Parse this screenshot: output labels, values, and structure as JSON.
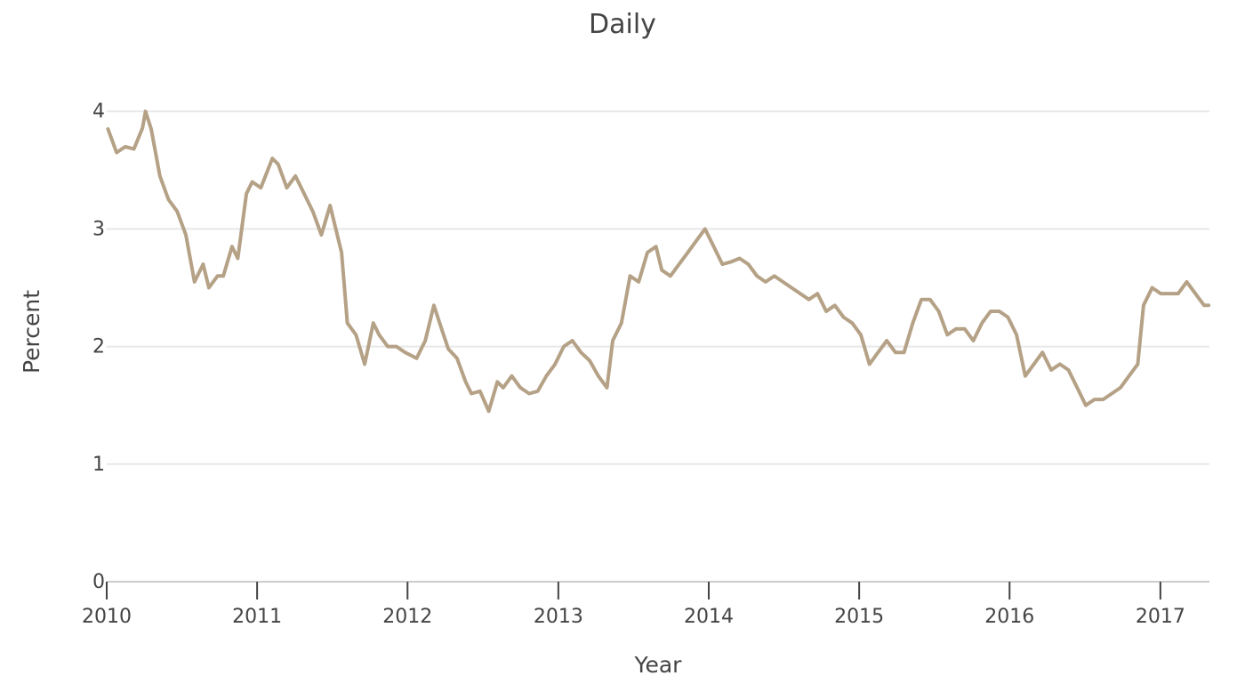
{
  "chart_data": {
    "type": "line",
    "title_lines": [
      "Daily"
    ],
    "xlabel": "Year",
    "ylabel": "Percent",
    "x_tick_labels": [
      "2010",
      "2011",
      "2012",
      "2013",
      "2014",
      "2015",
      "2016",
      "2017"
    ],
    "y_tick_labels": [
      "0",
      "1",
      "2",
      "3",
      "4"
    ],
    "xlim": [
      "2010-01-01",
      "2017-04-30"
    ],
    "ylim": [
      0,
      4.1
    ],
    "grid": true,
    "colors": {
      "series": "#b5a186",
      "text": "#444444",
      "grid": "#e8e8e8",
      "axis": "#cccccc"
    },
    "series": [
      {
        "x": [
          "2010-01-04",
          "2010-01-25",
          "2010-02-15",
          "2010-03-08",
          "2010-03-29",
          "2010-04-05",
          "2010-04-19",
          "2010-05-10",
          "2010-05-31",
          "2010-06-21",
          "2010-07-12",
          "2010-08-02",
          "2010-08-23",
          "2010-09-06",
          "2010-09-27",
          "2010-10-11",
          "2010-11-01",
          "2010-11-15",
          "2010-12-06",
          "2010-12-20",
          "2011-01-10",
          "2011-02-07",
          "2011-02-21",
          "2011-03-14",
          "2011-04-04",
          "2011-04-25",
          "2011-05-16",
          "2011-06-06",
          "2011-06-27",
          "2011-07-11",
          "2011-07-25",
          "2011-08-08",
          "2011-08-29",
          "2011-09-19",
          "2011-10-10",
          "2011-10-24",
          "2011-11-14",
          "2011-12-05",
          "2011-12-26",
          "2012-01-23",
          "2012-02-13",
          "2012-03-05",
          "2012-03-19",
          "2012-04-09",
          "2012-04-30",
          "2012-05-21",
          "2012-06-04",
          "2012-06-25",
          "2012-07-16",
          "2012-08-06",
          "2012-08-20",
          "2012-09-10",
          "2012-10-01",
          "2012-10-22",
          "2012-11-12",
          "2012-12-03",
          "2012-12-24",
          "2013-01-14",
          "2013-02-04",
          "2013-02-25",
          "2013-03-18",
          "2013-04-08",
          "2013-04-29",
          "2013-05-13",
          "2013-06-03",
          "2013-06-24",
          "2013-07-15",
          "2013-08-05",
          "2013-08-26",
          "2013-09-09",
          "2013-09-30",
          "2013-10-21",
          "2013-11-11",
          "2013-12-02",
          "2013-12-23",
          "2014-01-13",
          "2014-02-03",
          "2014-02-24",
          "2014-03-17",
          "2014-04-07",
          "2014-04-28",
          "2014-05-19",
          "2014-06-09",
          "2014-06-30",
          "2014-07-21",
          "2014-08-11",
          "2014-09-01",
          "2014-09-22",
          "2014-10-13",
          "2014-11-03",
          "2014-11-24",
          "2014-12-15",
          "2015-01-05",
          "2015-01-26",
          "2015-02-16",
          "2015-03-09",
          "2015-03-30",
          "2015-04-20",
          "2015-05-11",
          "2015-06-01",
          "2015-06-22",
          "2015-07-13",
          "2015-08-03",
          "2015-08-24",
          "2015-09-14",
          "2015-10-05",
          "2015-10-26",
          "2015-11-16",
          "2015-12-07",
          "2015-12-28",
          "2016-01-18",
          "2016-02-08",
          "2016-02-29",
          "2016-03-21",
          "2016-04-11",
          "2016-05-02",
          "2016-05-23",
          "2016-06-13",
          "2016-07-04",
          "2016-07-25",
          "2016-08-15",
          "2016-09-05",
          "2016-09-26",
          "2016-10-17",
          "2016-11-07",
          "2016-11-21",
          "2016-12-12",
          "2017-01-02",
          "2017-01-23",
          "2017-02-13",
          "2017-03-06",
          "2017-03-27",
          "2017-04-17",
          "2017-04-28"
        ],
        "values": [
          3.85,
          3.65,
          3.7,
          3.68,
          3.86,
          4.0,
          3.85,
          3.45,
          3.25,
          3.15,
          2.95,
          2.55,
          2.7,
          2.5,
          2.6,
          2.6,
          2.85,
          2.75,
          3.3,
          3.4,
          3.35,
          3.6,
          3.55,
          3.35,
          3.45,
          3.3,
          3.15,
          2.95,
          3.2,
          3.0,
          2.8,
          2.2,
          2.1,
          1.85,
          2.2,
          2.1,
          2.0,
          2.0,
          1.95,
          1.9,
          2.05,
          2.35,
          2.2,
          1.98,
          1.9,
          1.7,
          1.6,
          1.62,
          1.45,
          1.7,
          1.65,
          1.75,
          1.65,
          1.6,
          1.62,
          1.75,
          1.85,
          2.0,
          2.05,
          1.95,
          1.88,
          1.75,
          1.65,
          2.05,
          2.2,
          2.6,
          2.55,
          2.8,
          2.85,
          2.65,
          2.6,
          2.7,
          2.8,
          2.9,
          3.0,
          2.85,
          2.7,
          2.72,
          2.75,
          2.7,
          2.6,
          2.55,
          2.6,
          2.55,
          2.5,
          2.45,
          2.4,
          2.45,
          2.3,
          2.35,
          2.25,
          2.2,
          2.1,
          1.85,
          1.95,
          2.05,
          1.95,
          1.95,
          2.2,
          2.4,
          2.4,
          2.3,
          2.1,
          2.15,
          2.15,
          2.05,
          2.2,
          2.3,
          2.3,
          2.25,
          2.1,
          1.75,
          1.85,
          1.95,
          1.8,
          1.85,
          1.8,
          1.65,
          1.5,
          1.55,
          1.55,
          1.6,
          1.65,
          1.75,
          1.85,
          2.35,
          2.5,
          2.45,
          2.45,
          2.45,
          2.55,
          2.45,
          2.35,
          2.35
        ]
      }
    ]
  }
}
